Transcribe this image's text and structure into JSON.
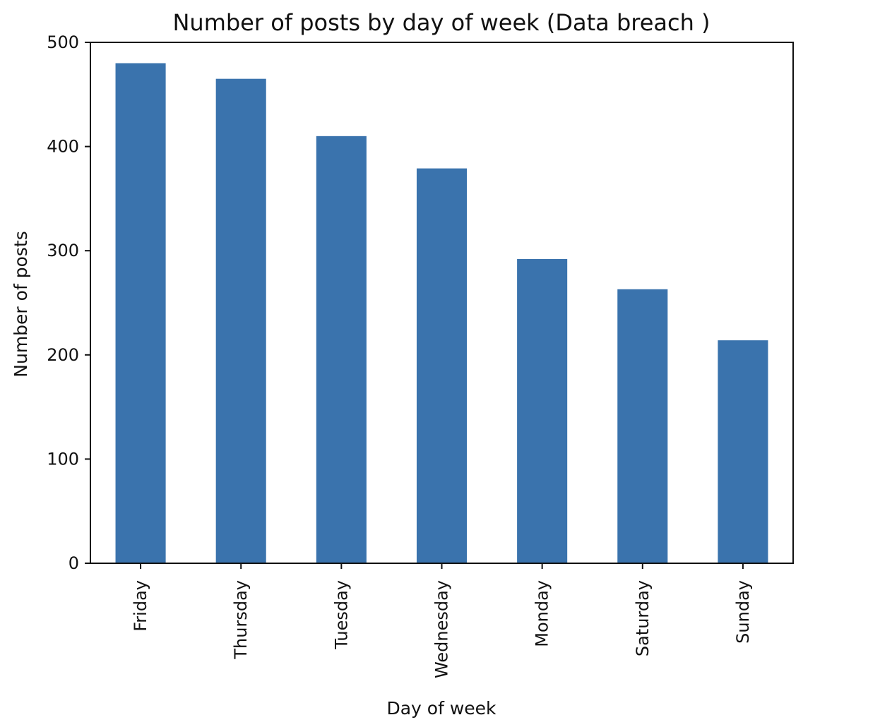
{
  "chart_data": {
    "type": "bar",
    "title": "Number of posts by day of week (Data breach )",
    "xlabel": "Day of week",
    "ylabel": "Number of posts",
    "categories": [
      "Friday",
      "Thursday",
      "Tuesday",
      "Wednesday",
      "Monday",
      "Saturday",
      "Sunday"
    ],
    "values": [
      480,
      465,
      410,
      379,
      292,
      263,
      214
    ],
    "ylim": [
      0,
      500
    ],
    "yticks": [
      "0",
      "100",
      "200",
      "300",
      "400",
      "500"
    ],
    "grid": false,
    "legend": "none",
    "bar_color": "#3a73ad",
    "x_tick_rotation": "vertical"
  }
}
